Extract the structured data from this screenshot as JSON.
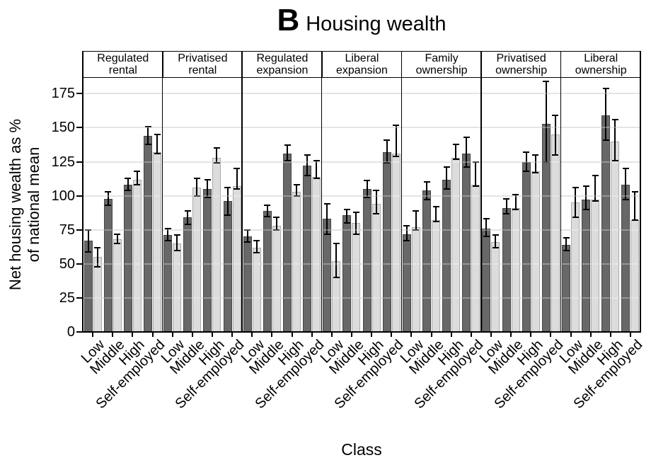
{
  "chart_data": {
    "type": "bar",
    "title_letter": "B",
    "title_text": "Housing wealth",
    "xlabel": "Class",
    "ylabel_line1": "Net housing wealth as %",
    "ylabel_line2": "of national mean",
    "yticks": [
      0,
      25,
      50,
      75,
      100,
      125,
      150,
      175
    ],
    "ylim": [
      0,
      186
    ],
    "grid": true,
    "legend": "none",
    "categories": [
      "Low",
      "Middle",
      "High",
      "Self-employed"
    ],
    "series_names": [
      "dark-grey-bar",
      "light-grey-bar"
    ],
    "bar_format": "[value, ci_low, ci_high] as % of national mean",
    "colors": {
      "dark_bar": "#686868",
      "dark_border": "#454545",
      "light_bar": "#dcdcdc",
      "light_border": "#ababab",
      "gridline": "#d9d9d9",
      "axis": "#000000"
    },
    "panels": [
      {
        "label": "Regulated\nrental",
        "dark": [
          [
            67,
            59,
            75
          ],
          [
            98,
            93,
            103
          ],
          [
            108,
            104,
            113
          ],
          [
            144,
            138,
            151
          ]
        ],
        "light": [
          [
            55,
            48,
            62
          ],
          [
            68,
            65,
            72
          ],
          [
            112,
            108,
            118
          ],
          [
            132,
            131,
            145
          ]
        ]
      },
      {
        "label": "Privatised\nrental",
        "dark": [
          [
            71,
            67,
            76
          ],
          [
            84,
            79,
            89
          ],
          [
            105,
            99,
            112
          ],
          [
            96,
            86,
            106
          ]
        ],
        "light": [
          [
            65,
            60,
            71
          ],
          [
            106,
            100,
            113
          ],
          [
            128,
            124,
            135
          ],
          [
            107,
            105,
            120
          ]
        ]
      },
      {
        "label": "Regulated\nexpansion",
        "dark": [
          [
            70,
            66,
            75
          ],
          [
            89,
            85,
            93
          ],
          [
            131,
            126,
            137
          ],
          [
            122,
            115,
            130
          ]
        ],
        "light": [
          [
            62,
            58,
            67
          ],
          [
            78,
            75,
            84
          ],
          [
            103,
            100,
            108
          ],
          [
            114,
            113,
            126
          ]
        ]
      },
      {
        "label": "Liberal\nexpansion",
        "dark": [
          [
            83,
            72,
            94
          ],
          [
            86,
            80,
            90
          ],
          [
            105,
            99,
            111
          ],
          [
            132,
            124,
            141
          ]
        ],
        "light": [
          [
            52,
            40,
            65
          ],
          [
            80,
            72,
            88
          ],
          [
            94,
            87,
            104
          ],
          [
            131,
            129,
            152
          ]
        ]
      },
      {
        "label": "Family\nownership",
        "dark": [
          [
            72,
            67,
            78
          ],
          [
            104,
            97,
            110
          ],
          [
            112,
            105,
            121
          ],
          [
            131,
            121,
            143
          ]
        ],
        "light": [
          [
            77,
            75,
            89
          ],
          [
            82,
            81,
            92
          ],
          [
            128,
            127,
            138
          ],
          [
            108,
            107,
            125
          ]
        ]
      },
      {
        "label": "Privatised\nownership",
        "dark": [
          [
            76,
            70,
            83
          ],
          [
            91,
            87,
            98
          ],
          [
            125,
            118,
            132
          ],
          [
            153,
            125,
            184
          ]
        ],
        "light": [
          [
            66,
            62,
            71
          ],
          [
            91,
            90,
            101
          ],
          [
            118,
            117,
            130
          ],
          [
            145,
            130,
            159
          ]
        ]
      },
      {
        "label": "Liberal\nownership",
        "dark": [
          [
            64,
            60,
            69
          ],
          [
            97,
            90,
            107
          ],
          [
            159,
            141,
            179
          ],
          [
            108,
            97,
            120
          ]
        ],
        "light": [
          [
            95,
            84,
            106
          ],
          [
            97,
            96,
            115
          ],
          [
            140,
            126,
            156
          ],
          [
            82,
            82,
            103
          ]
        ]
      }
    ]
  }
}
